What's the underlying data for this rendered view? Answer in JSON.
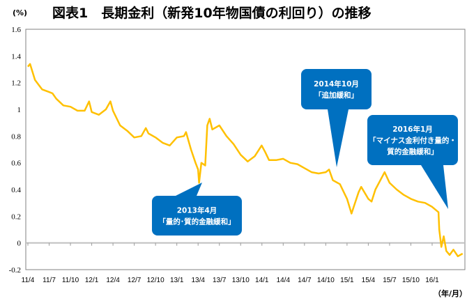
{
  "title": "図表1　長期金利（新発10年物国債の利回り）の推移",
  "y_unit": "(%)",
  "x_unit": "（年/月）",
  "chart_data": {
    "type": "line",
    "title": "図表1　長期金利（新発10年物国債の利回り）の推移",
    "ylabel": "(%)",
    "xlabel": "（年/月）",
    "ylim": [
      -0.2,
      1.6
    ],
    "yticks": [
      "1.6",
      "1.4",
      "1.2",
      "1",
      "0.8",
      "0.6",
      "0.4",
      "0.2",
      "0",
      "-0.2"
    ],
    "xticks": [
      "11/4",
      "11/7",
      "11/10",
      "12/1",
      "12/4",
      "12/7",
      "12/10",
      "13/1",
      "13/4",
      "13/7",
      "13/10",
      "14/1",
      "14/4",
      "14/7",
      "14/10",
      "15/1",
      "15/4",
      "15/7",
      "15/10",
      "16/1"
    ],
    "line_color": "#FFC000",
    "grid": false,
    "series": [
      {
        "x": [
          "2011-04-01",
          "2011-04-10",
          "2011-05-01",
          "2011-06-01",
          "2011-07-01",
          "2011-07-15",
          "2011-08-01",
          "2011-09-01",
          "2011-10-01",
          "2011-11-01",
          "2011-12-01",
          "2011-12-20",
          "2012-01-01",
          "2012-02-01",
          "2012-03-01",
          "2012-03-20",
          "2012-04-01",
          "2012-05-01",
          "2012-06-01",
          "2012-07-01",
          "2012-08-01",
          "2012-08-20",
          "2012-09-01",
          "2012-10-01",
          "2012-11-01",
          "2012-12-01",
          "2013-01-01",
          "2013-02-01",
          "2013-02-10",
          "2013-03-01",
          "2013-03-20",
          "2013-04-01",
          "2013-04-05",
          "2013-04-15",
          "2013-05-01",
          "2013-05-10",
          "2013-05-20",
          "2013-06-01",
          "2013-07-01",
          "2013-08-01",
          "2013-09-01",
          "2013-10-01",
          "2013-11-01",
          "2013-12-01",
          "2013-12-30",
          "2014-01-15",
          "2014-02-01",
          "2014-03-01",
          "2014-04-01",
          "2014-05-01",
          "2014-06-01",
          "2014-07-01",
          "2014-08-01",
          "2014-09-01",
          "2014-10-01",
          "2014-10-15",
          "2014-11-01",
          "2014-12-01",
          "2015-01-01",
          "2015-01-20",
          "2015-02-01",
          "2015-02-20",
          "2015-03-01",
          "2015-04-01",
          "2015-04-15",
          "2015-05-01",
          "2015-06-01",
          "2015-06-10",
          "2015-07-01",
          "2015-08-01",
          "2015-09-01",
          "2015-10-01",
          "2015-11-01",
          "2015-12-01",
          "2016-01-01",
          "2016-01-28",
          "2016-02-01",
          "2016-02-10",
          "2016-02-20",
          "2016-03-01",
          "2016-03-15",
          "2016-04-01",
          "2016-04-20",
          "2016-05-10"
        ],
        "y": [
          1.32,
          1.34,
          1.22,
          1.15,
          1.13,
          1.12,
          1.08,
          1.03,
          1.02,
          0.99,
          0.99,
          1.06,
          0.98,
          0.96,
          1.0,
          1.06,
          0.99,
          0.88,
          0.84,
          0.79,
          0.8,
          0.86,
          0.82,
          0.79,
          0.75,
          0.73,
          0.79,
          0.8,
          0.83,
          0.7,
          0.6,
          0.55,
          0.45,
          0.6,
          0.58,
          0.88,
          0.93,
          0.85,
          0.88,
          0.8,
          0.74,
          0.66,
          0.61,
          0.65,
          0.73,
          0.68,
          0.62,
          0.62,
          0.63,
          0.6,
          0.59,
          0.56,
          0.53,
          0.52,
          0.53,
          0.55,
          0.47,
          0.44,
          0.33,
          0.22,
          0.28,
          0.38,
          0.42,
          0.33,
          0.31,
          0.4,
          0.5,
          0.53,
          0.45,
          0.4,
          0.36,
          0.33,
          0.31,
          0.3,
          0.27,
          0.23,
          0.1,
          -0.03,
          0.05,
          -0.06,
          -0.09,
          -0.05,
          -0.1,
          -0.08
        ]
      }
    ],
    "annotations": [
      {
        "date": "2013-04-05",
        "lines": [
          "2013年4月",
          "「量的･質的金融緩和」"
        ]
      },
      {
        "date": "2014-10-31",
        "lines": [
          "2014年10月",
          "「追加緩和」"
        ]
      },
      {
        "date": "2016-01-29",
        "lines": [
          "2016年1月",
          "「マイナス金利付き量的・",
          "質的金融緩和」"
        ]
      }
    ],
    "callout_color": "#0070C0"
  }
}
